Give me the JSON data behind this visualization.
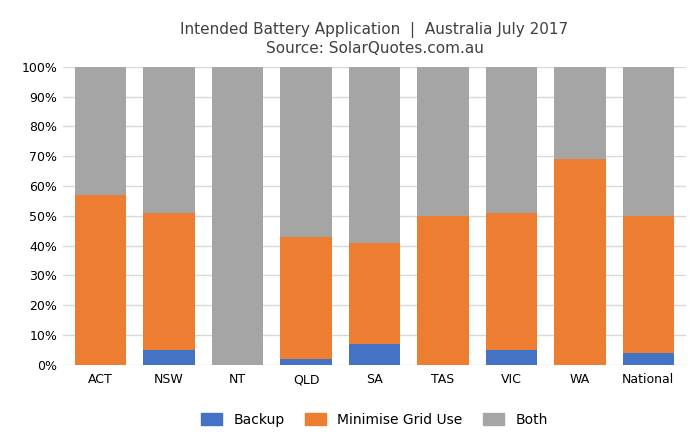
{
  "categories": [
    "ACT",
    "NSW",
    "NT",
    "QLD",
    "SA",
    "TAS",
    "VIC",
    "WA",
    "National"
  ],
  "backup": [
    0,
    5,
    0,
    2,
    7,
    0,
    5,
    0,
    4
  ],
  "minimise_grid": [
    57,
    46,
    0,
    41,
    34,
    50,
    46,
    69,
    46
  ],
  "both": [
    43,
    49,
    100,
    57,
    59,
    50,
    49,
    31,
    50
  ],
  "backup_color": "#4472c4",
  "minimise_color": "#ed7d31",
  "both_color": "#a5a5a5",
  "title_line1": "Intended Battery Application  |  Australia July 2017",
  "title_line2": "Source: SolarQuotes.com.au",
  "background_color": "#ffffff",
  "grid_color": "#d9d9d9",
  "legend_labels": [
    "Backup",
    "Minimise Grid Use",
    "Both"
  ],
  "yticks": [
    0,
    10,
    20,
    30,
    40,
    50,
    60,
    70,
    80,
    90,
    100
  ],
  "ytick_labels": [
    "0%",
    "10%",
    "20%",
    "30%",
    "40%",
    "50%",
    "60%",
    "70%",
    "80%",
    "90%",
    "100%"
  ]
}
